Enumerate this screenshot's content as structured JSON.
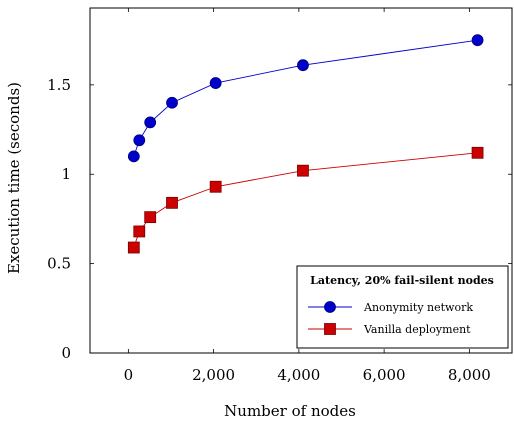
{
  "chart_data": {
    "type": "line",
    "xlabel": "Number of nodes",
    "ylabel": "Execution time (seconds)",
    "xlim": [
      -900,
      9000
    ],
    "ylim": [
      0,
      1.93
    ],
    "xticks": [
      0,
      2000,
      4000,
      6000,
      8000
    ],
    "xtick_labels": [
      "0",
      "2,000",
      "4,000",
      "6,000",
      "8,000"
    ],
    "yticks": [
      0,
      0.5,
      1,
      1.5
    ],
    "ytick_labels": [
      "0",
      "0.5",
      "1",
      "1.5"
    ],
    "legend": {
      "title": "Latency, 20% fail-silent nodes",
      "placement": "bottom-right"
    },
    "series": [
      {
        "name": "Anonymity network",
        "color": "#0000cc",
        "marker": "circle",
        "x": [
          128,
          256,
          512,
          1024,
          2048,
          4096,
          8192
        ],
        "y": [
          1.1,
          1.19,
          1.29,
          1.4,
          1.51,
          1.61,
          1.75
        ]
      },
      {
        "name": "Vanilla deployment",
        "color": "#cc0000",
        "marker": "square",
        "x": [
          128,
          256,
          512,
          1024,
          2048,
          4096,
          8192
        ],
        "y": [
          0.59,
          0.68,
          0.76,
          0.84,
          0.93,
          1.02,
          1.12
        ]
      }
    ]
  }
}
